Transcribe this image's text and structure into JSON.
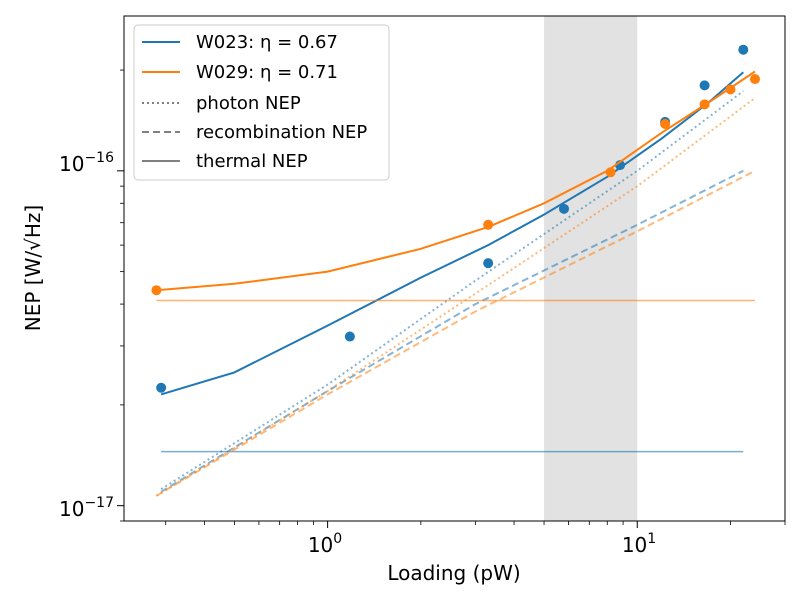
{
  "chart_data": {
    "type": "scatter",
    "xlabel": "Loading (pW)",
    "ylabel": "NEP [W/√Hz]",
    "xscale": "log",
    "yscale": "log",
    "xlim": [
      0.22,
      30
    ],
    "ylim": [
      9e-18,
      2.9e-16
    ],
    "shaded_band": [
      5,
      10
    ],
    "x_tick_labels": [
      {
        "value": 1,
        "base": "10",
        "exp": "0"
      },
      {
        "value": 10,
        "base": "10",
        "exp": "1"
      }
    ],
    "y_tick_labels": [
      {
        "value": 1e-17,
        "base": "10",
        "exp": "−17"
      },
      {
        "value": 1e-16,
        "base": "10",
        "exp": "−16"
      }
    ],
    "colors": {
      "W023": "#1f77b4",
      "W029": "#ff7f0e",
      "band": "#d3d3d3",
      "legend_gray": "#808080"
    },
    "series": [
      {
        "name": "W023: η = 0.67",
        "color": "#1f77b4",
        "points": [
          [
            0.29,
            2.25e-17
          ],
          [
            1.18,
            3.2e-17
          ],
          [
            3.3,
            5.3e-17
          ],
          [
            5.8,
            7.7e-17
          ],
          [
            8.8,
            1.04e-16
          ],
          [
            12.3,
            1.4e-16
          ],
          [
            16.5,
            1.8e-16
          ],
          [
            22.0,
            2.3e-16
          ]
        ],
        "fit": [
          [
            0.29,
            2.15e-17
          ],
          [
            0.5,
            2.5e-17
          ],
          [
            1.0,
            3.45e-17
          ],
          [
            2.0,
            4.8e-17
          ],
          [
            3.3,
            6e-17
          ],
          [
            5.0,
            7.4e-17
          ],
          [
            8.0,
            9.6e-17
          ],
          [
            12.0,
            1.25e-16
          ],
          [
            17.0,
            1.6e-16
          ],
          [
            22.0,
            1.97e-16
          ]
        ],
        "thermal": 1.45e-17,
        "photon": [
          [
            0.29,
            1.12e-17
          ],
          [
            1.0,
            2.3e-17
          ],
          [
            3.0,
            4.7e-17
          ],
          [
            10.0,
            1e-16
          ],
          [
            22.0,
            1.73e-16
          ]
        ],
        "recombination": [
          [
            0.29,
            1.1e-17
          ],
          [
            1.0,
            2.2e-17
          ],
          [
            3.0,
            4e-17
          ],
          [
            10.0,
            6.9e-17
          ],
          [
            22.0,
            1e-16
          ]
        ]
      },
      {
        "name": "W029: η = 0.71",
        "color": "#ff7f0e",
        "points": [
          [
            0.28,
            4.4e-17
          ],
          [
            3.3,
            6.9e-17
          ],
          [
            8.2,
            9.9e-17
          ],
          [
            12.3,
            1.38e-16
          ],
          [
            16.5,
            1.58e-16
          ],
          [
            20.0,
            1.75e-16
          ],
          [
            24.0,
            1.88e-16
          ]
        ],
        "fit": [
          [
            0.28,
            4.4e-17
          ],
          [
            0.5,
            4.6e-17
          ],
          [
            1.0,
            5e-17
          ],
          [
            2.0,
            5.85e-17
          ],
          [
            3.3,
            6.8e-17
          ],
          [
            5.0,
            8e-17
          ],
          [
            8.0,
            1e-16
          ],
          [
            12.0,
            1.3e-16
          ],
          [
            17.0,
            1.6e-16
          ],
          [
            24.0,
            1.98e-16
          ]
        ],
        "thermal": 4.1e-17,
        "photon": [
          [
            0.28,
            1.07e-17
          ],
          [
            1.0,
            2.2e-17
          ],
          [
            3.0,
            4.3e-17
          ],
          [
            10.0,
            9e-17
          ],
          [
            24.0,
            1.65e-16
          ]
        ],
        "recombination": [
          [
            0.28,
            1.07e-17
          ],
          [
            1.0,
            2.15e-17
          ],
          [
            3.0,
            3.8e-17
          ],
          [
            10.0,
            6.6e-17
          ],
          [
            24.0,
            1e-16
          ]
        ]
      }
    ],
    "legend": {
      "placement": "top-left",
      "entries": [
        {
          "label": "W023: η = 0.67",
          "style": "solid",
          "color": "#1f77b4"
        },
        {
          "label": "W029: η = 0.71",
          "style": "solid",
          "color": "#ff7f0e"
        },
        {
          "label": "photon NEP",
          "style": "dotted",
          "color": "#808080"
        },
        {
          "label": "recombination NEP",
          "style": "dashed",
          "color": "#808080"
        },
        {
          "label": "thermal NEP",
          "style": "solid",
          "color": "#808080"
        }
      ]
    }
  }
}
